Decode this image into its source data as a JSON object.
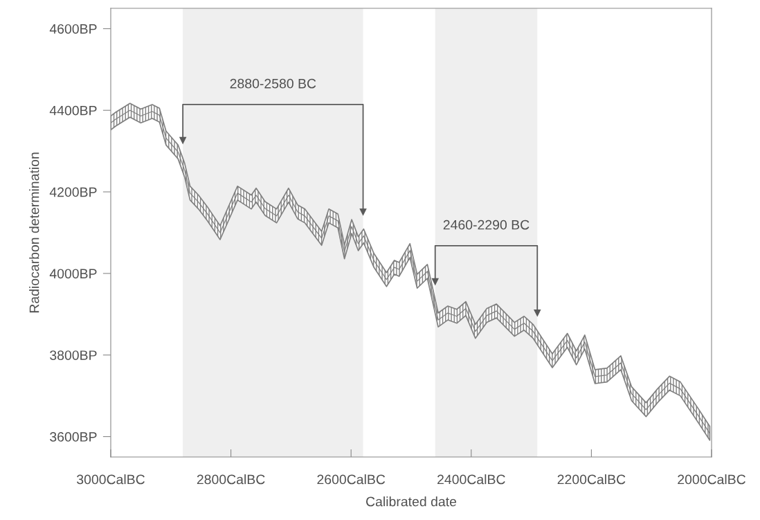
{
  "chart_data": {
    "type": "line",
    "xlabel": "Calibrated date",
    "ylabel": "Radiocarbon determination",
    "xlim": [
      3000,
      2000
    ],
    "ylim": [
      3550,
      4650
    ],
    "xticks": [
      {
        "value": 3000,
        "label": "3000CalBC"
      },
      {
        "value": 2800,
        "label": "2800CalBC"
      },
      {
        "value": 2600,
        "label": "2600CalBC"
      },
      {
        "value": 2400,
        "label": "2400CalBC"
      },
      {
        "value": 2200,
        "label": "2200CalBC"
      },
      {
        "value": 2000,
        "label": "2000CalBC"
      }
    ],
    "yticks": [
      {
        "value": 3600,
        "label": "3600BP"
      },
      {
        "value": 3800,
        "label": "3800BP"
      },
      {
        "value": 4000,
        "label": "4000BP"
      },
      {
        "value": 4200,
        "label": "4200BP"
      },
      {
        "value": 4400,
        "label": "4400BP"
      },
      {
        "value": 4600,
        "label": "4600BP"
      }
    ],
    "grid": false,
    "legend": false,
    "series": [
      {
        "color": "#7f7f7f",
        "x": [
          3000,
          2992,
          2968,
          2950,
          2931,
          2919,
          2908,
          2888,
          2877,
          2868,
          2854,
          2839,
          2818,
          2789,
          2766,
          2758,
          2743,
          2724,
          2704,
          2689,
          2677,
          2649,
          2637,
          2622,
          2611,
          2599,
          2588,
          2579,
          2562,
          2541,
          2528,
          2520,
          2502,
          2490,
          2473,
          2455,
          2439,
          2424,
          2409,
          2393,
          2374,
          2358,
          2328,
          2312,
          2297,
          2265,
          2240,
          2225,
          2211,
          2194,
          2174,
          2151,
          2133,
          2109,
          2090,
          2070,
          2052,
          2021,
          2003
        ],
        "values": [
          4369,
          4378,
          4400,
          4386,
          4397,
          4388,
          4332,
          4298,
          4253,
          4197,
          4175,
          4146,
          4100,
          4197,
          4175,
          4192,
          4159,
          4141,
          4192,
          4151,
          4141,
          4086,
          4141,
          4129,
          4053,
          4115,
          4073,
          4092,
          4032,
          3985,
          4015,
          4010,
          4056,
          3981,
          4005,
          3886,
          3903,
          3895,
          3914,
          3858,
          3897,
          3908,
          3863,
          3878,
          3858,
          3786,
          3836,
          3793,
          3832,
          3747,
          3751,
          3781,
          3705,
          3666,
          3700,
          3731,
          3717,
          3649,
          3608
        ],
        "lower": [
          4352,
          4361,
          4383,
          4369,
          4380,
          4371,
          4315,
          4281,
          4236,
          4180,
          4158,
          4129,
          4083,
          4180,
          4158,
          4175,
          4142,
          4124,
          4175,
          4134,
          4124,
          4069,
          4124,
          4112,
          4036,
          4098,
          4056,
          4075,
          4015,
          3968,
          3998,
          3993,
          4039,
          3964,
          3988,
          3869,
          3886,
          3878,
          3897,
          3841,
          3880,
          3891,
          3846,
          3861,
          3841,
          3769,
          3819,
          3776,
          3815,
          3730,
          3734,
          3764,
          3688,
          3649,
          3683,
          3714,
          3700,
          3632,
          3591
        ],
        "upper": [
          4386,
          4395,
          4417,
          4403,
          4414,
          4405,
          4349,
          4315,
          4270,
          4214,
          4192,
          4163,
          4117,
          4214,
          4192,
          4209,
          4176,
          4158,
          4209,
          4168,
          4158,
          4103,
          4158,
          4146,
          4070,
          4132,
          4090,
          4109,
          4049,
          4002,
          4032,
          4027,
          4073,
          3998,
          4022,
          3903,
          3920,
          3912,
          3931,
          3875,
          3914,
          3925,
          3880,
          3895,
          3875,
          3803,
          3853,
          3810,
          3849,
          3764,
          3768,
          3798,
          3722,
          3683,
          3717,
          3748,
          3734,
          3666,
          3625
        ]
      }
    ],
    "bands": [
      {
        "axis": "x",
        "from": 2880,
        "to": 2580,
        "label": "2880-2580 BC",
        "color": "#efefef"
      },
      {
        "axis": "x",
        "from": 2460,
        "to": 2290,
        "label": "2460-2290 BC",
        "color": "#efefef"
      }
    ]
  }
}
